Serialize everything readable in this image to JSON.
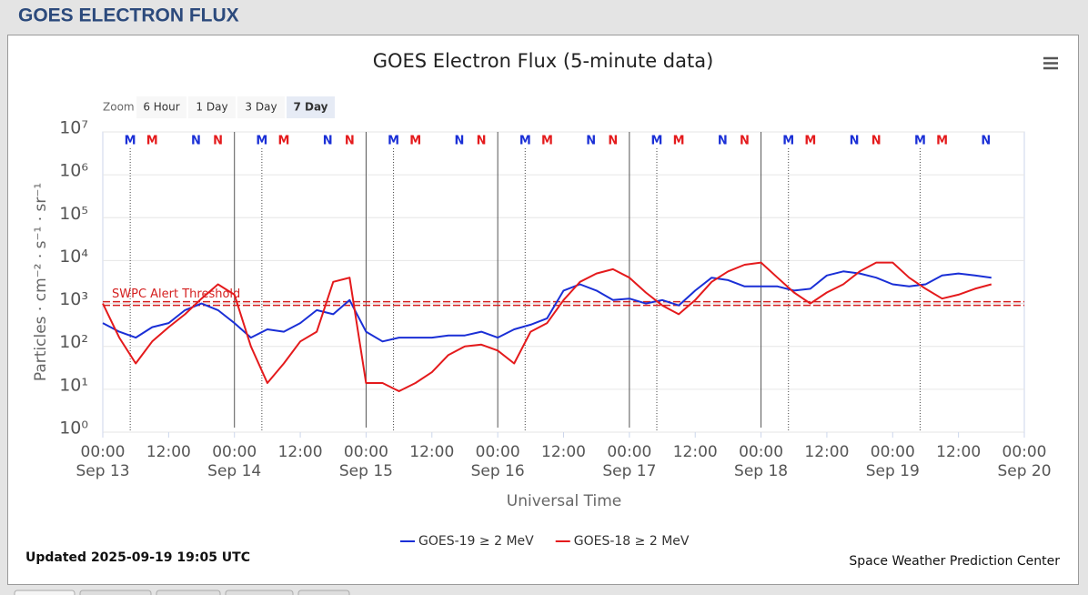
{
  "header": {
    "title": "GOES ELECTRON FLUX"
  },
  "chart_data": {
    "type": "line",
    "title": "GOES Electron Flux (5-minute data)",
    "xlabel": "Universal Time",
    "ylabel": "Particles · cm⁻² · s⁻¹ · sr⁻¹",
    "log_y": true,
    "grid": true,
    "zoom": {
      "label": "Zoom",
      "buttons": [
        "6 Hour",
        "1 Day",
        "3 Day",
        "7 Day"
      ],
      "selected": 3
    },
    "x": [
      "Sep 13 00:00",
      "Sep 13 03:00",
      "Sep 13 06:00",
      "Sep 13 09:00",
      "Sep 13 12:00",
      "Sep 13 15:00",
      "Sep 13 18:00",
      "Sep 13 21:00",
      "Sep 14 00:00",
      "Sep 14 03:00",
      "Sep 14 06:00",
      "Sep 14 09:00",
      "Sep 14 12:00",
      "Sep 14 15:00",
      "Sep 14 18:00",
      "Sep 14 21:00",
      "Sep 15 00:00",
      "Sep 15 03:00",
      "Sep 15 06:00",
      "Sep 15 09:00",
      "Sep 15 12:00",
      "Sep 15 15:00",
      "Sep 15 18:00",
      "Sep 15 21:00",
      "Sep 16 00:00",
      "Sep 16 03:00",
      "Sep 16 06:00",
      "Sep 16 09:00",
      "Sep 16 12:00",
      "Sep 16 15:00",
      "Sep 16 18:00",
      "Sep 16 21:00",
      "Sep 17 00:00",
      "Sep 17 03:00",
      "Sep 17 06:00",
      "Sep 17 09:00",
      "Sep 17 12:00",
      "Sep 17 15:00",
      "Sep 17 18:00",
      "Sep 17 21:00",
      "Sep 18 00:00",
      "Sep 18 03:00",
      "Sep 18 06:00",
      "Sep 18 09:00",
      "Sep 18 12:00",
      "Sep 18 15:00",
      "Sep 18 18:00",
      "Sep 18 21:00",
      "Sep 19 00:00",
      "Sep 19 03:00",
      "Sep 19 06:00",
      "Sep 19 09:00",
      "Sep 19 12:00",
      "Sep 19 15:00",
      "Sep 19 18:00"
    ],
    "series": [
      {
        "name": "GOES-19 ≥ 2 MeV",
        "color": "#1a2fd6",
        "values": [
          350,
          220,
          160,
          280,
          350,
          700,
          1000,
          700,
          350,
          160,
          250,
          220,
          350,
          700,
          560,
          1200,
          220,
          130,
          160,
          160,
          160,
          180,
          180,
          220,
          160,
          250,
          320,
          450,
          2000,
          2800,
          2000,
          1200,
          1300,
          1000,
          1200,
          900,
          2000,
          4000,
          3500,
          2500,
          2500,
          2500,
          2000,
          2200,
          4500,
          5600,
          5000,
          4000,
          2800,
          2500,
          2800,
          4500,
          5000,
          4500,
          4000
        ]
      },
      {
        "name": "GOES-18 ≥ 2 MeV",
        "color": "#e41a1c",
        "values": [
          1000,
          160,
          40,
          130,
          280,
          560,
          1300,
          2800,
          1600,
          100,
          14,
          40,
          130,
          220,
          3200,
          4000,
          14,
          14,
          9,
          14,
          25,
          63,
          100,
          110,
          80,
          40,
          220,
          350,
          1200,
          3200,
          5000,
          6300,
          4000,
          1800,
          900,
          560,
          1200,
          3200,
          5600,
          8000,
          9000,
          4000,
          1800,
          1000,
          1800,
          2800,
          5600,
          9000,
          9000,
          4000,
          2200,
          1300,
          1600,
          2200,
          2800
        ]
      }
    ],
    "xlim": [
      "Sep 13 00:00",
      "Sep 20 00:00"
    ],
    "xticks": [
      {
        "value": "Sep 13 00:00",
        "label": "00:00"
      },
      {
        "value": "Sep 13 12:00",
        "label": "12:00"
      },
      {
        "value": "Sep 14 00:00",
        "label": "00:00"
      },
      {
        "value": "Sep 14 12:00",
        "label": "12:00"
      },
      {
        "value": "Sep 15 00:00",
        "label": "00:00"
      },
      {
        "value": "Sep 15 12:00",
        "label": "12:00"
      },
      {
        "value": "Sep 16 00:00",
        "label": "00:00"
      },
      {
        "value": "Sep 16 12:00",
        "label": "12:00"
      },
      {
        "value": "Sep 17 00:00",
        "label": "00:00"
      },
      {
        "value": "Sep 17 12:00",
        "label": "12:00"
      },
      {
        "value": "Sep 18 00:00",
        "label": "00:00"
      },
      {
        "value": "Sep 18 12:00",
        "label": "12:00"
      },
      {
        "value": "Sep 19 00:00",
        "label": "00:00"
      },
      {
        "value": "Sep 19 12:00",
        "label": "12:00"
      },
      {
        "value": "Sep 20 00:00",
        "label": "00:00"
      }
    ],
    "day_labels": [
      {
        "value": "Sep 13 00:00",
        "label": "Sep 13"
      },
      {
        "value": "Sep 14 00:00",
        "label": "Sep 14"
      },
      {
        "value": "Sep 15 00:00",
        "label": "Sep 15"
      },
      {
        "value": "Sep 16 00:00",
        "label": "Sep 16"
      },
      {
        "value": "Sep 17 00:00",
        "label": "Sep 17"
      },
      {
        "value": "Sep 18 00:00",
        "label": "Sep 18"
      },
      {
        "value": "Sep 19 00:00",
        "label": "Sep 19"
      },
      {
        "value": "Sep 20 00:00",
        "label": "Sep 20"
      }
    ],
    "vlines": [
      "Sep 14 00:00",
      "Sep 15 00:00",
      "Sep 16 00:00",
      "Sep 17 00:00",
      "Sep 18 00:00"
    ],
    "ylim": [
      1,
      10000000
    ],
    "yticks": [
      {
        "value": 1,
        "label": "10⁰"
      },
      {
        "value": 10,
        "label": "10¹"
      },
      {
        "value": 100,
        "label": "10²"
      },
      {
        "value": 1000,
        "label": "10³"
      },
      {
        "value": 10000,
        "label": "10⁴"
      },
      {
        "value": 100000,
        "label": "10⁵"
      },
      {
        "value": 1000000,
        "label": "10⁶"
      },
      {
        "value": 10000000,
        "label": "10⁷"
      }
    ],
    "threshold": {
      "value": 1000,
      "label": "SWPC Alert Threshold",
      "color": "#d42020"
    },
    "markers": [
      {
        "label": "M",
        "color": "#1a2fd6",
        "x": "Sep 13 05:00"
      },
      {
        "label": "M",
        "color": "#e41a1c",
        "x": "Sep 13 09:00"
      },
      {
        "label": "N",
        "color": "#1a2fd6",
        "x": "Sep 13 17:00"
      },
      {
        "label": "N",
        "color": "#e41a1c",
        "x": "Sep 13 21:00"
      },
      {
        "label": "M",
        "color": "#1a2fd6",
        "x": "Sep 14 05:00"
      },
      {
        "label": "M",
        "color": "#e41a1c",
        "x": "Sep 14 09:00"
      },
      {
        "label": "N",
        "color": "#1a2fd6",
        "x": "Sep 14 17:00"
      },
      {
        "label": "N",
        "color": "#e41a1c",
        "x": "Sep 14 21:00"
      },
      {
        "label": "M",
        "color": "#1a2fd6",
        "x": "Sep 15 05:00"
      },
      {
        "label": "M",
        "color": "#e41a1c",
        "x": "Sep 15 09:00"
      },
      {
        "label": "N",
        "color": "#1a2fd6",
        "x": "Sep 15 17:00"
      },
      {
        "label": "N",
        "color": "#e41a1c",
        "x": "Sep 15 21:00"
      },
      {
        "label": "M",
        "color": "#1a2fd6",
        "x": "Sep 16 05:00"
      },
      {
        "label": "M",
        "color": "#e41a1c",
        "x": "Sep 16 09:00"
      },
      {
        "label": "N",
        "color": "#1a2fd6",
        "x": "Sep 16 17:00"
      },
      {
        "label": "N",
        "color": "#e41a1c",
        "x": "Sep 16 21:00"
      },
      {
        "label": "M",
        "color": "#1a2fd6",
        "x": "Sep 17 05:00"
      },
      {
        "label": "M",
        "color": "#e41a1c",
        "x": "Sep 17 09:00"
      },
      {
        "label": "N",
        "color": "#1a2fd6",
        "x": "Sep 17 17:00"
      },
      {
        "label": "N",
        "color": "#e41a1c",
        "x": "Sep 17 21:00"
      },
      {
        "label": "M",
        "color": "#1a2fd6",
        "x": "Sep 18 05:00"
      },
      {
        "label": "M",
        "color": "#e41a1c",
        "x": "Sep 18 09:00"
      },
      {
        "label": "N",
        "color": "#1a2fd6",
        "x": "Sep 18 17:00"
      },
      {
        "label": "N",
        "color": "#e41a1c",
        "x": "Sep 18 21:00"
      },
      {
        "label": "M",
        "color": "#1a2fd6",
        "x": "Sep 19 05:00"
      },
      {
        "label": "M",
        "color": "#e41a1c",
        "x": "Sep 19 09:00"
      },
      {
        "label": "N",
        "color": "#1a2fd6",
        "x": "Sep 19 17:00"
      }
    ],
    "updated": "Updated 2025-09-19 19:05 UTC",
    "credit": "Space Weather Prediction Center"
  }
}
